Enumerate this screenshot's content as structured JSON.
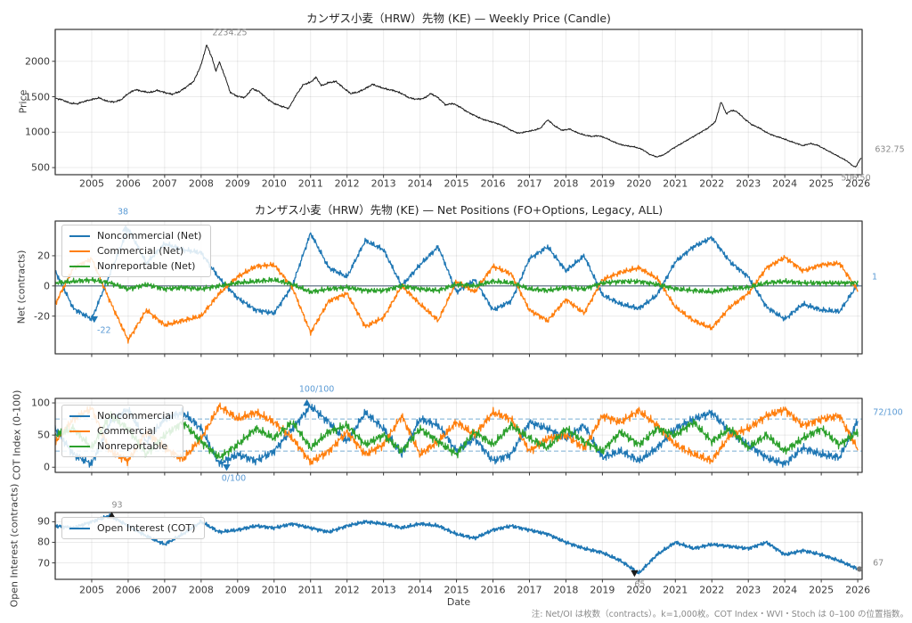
{
  "figure": {
    "footnote": "注: Net/OI は枚数（contracts）。k=1,000枚。COT Index・WVI・Stoch は 0–100 の位置指数。"
  },
  "axes": {
    "xlabel": "Date",
    "xlim": [
      2004.0,
      2026.12
    ],
    "xticks": [
      2005,
      2006,
      2007,
      2008,
      2009,
      2010,
      2011,
      2012,
      2013,
      2014,
      2015,
      2016,
      2017,
      2018,
      2019,
      2020,
      2021,
      2022,
      2023,
      2024,
      2025,
      2026
    ]
  },
  "colors": {
    "noncommercial": "#1f77b4",
    "commercial": "#ff7f0e",
    "nonreportable": "#2ca02c",
    "price": "#1a1a1a",
    "annotation_blue": "#5b9bd5",
    "annotation_gray": "#8a8a8a",
    "guide_dashed": "#1f77b4",
    "zero_line": "#53677d"
  },
  "chart_data": [
    {
      "id": "price",
      "type": "line",
      "title": "カンザス小麦（HRW）先物 (KE) — Weekly Price (Candle)",
      "ylabel": "Price",
      "yticks": [
        500,
        1000,
        1500,
        2000
      ],
      "ylim": [
        400,
        2450
      ],
      "x": [
        2004.0,
        2004.2,
        2004.4,
        2004.6,
        2004.8,
        2005.0,
        2005.2,
        2005.4,
        2005.6,
        2005.8,
        2006.0,
        2006.2,
        2006.4,
        2006.6,
        2006.8,
        2007.0,
        2007.2,
        2007.4,
        2007.6,
        2007.8,
        2008.0,
        2008.15,
        2008.3,
        2008.4,
        2008.5,
        2008.65,
        2008.8,
        2009.0,
        2009.2,
        2009.4,
        2009.6,
        2009.8,
        2010.0,
        2010.2,
        2010.4,
        2010.6,
        2010.8,
        2011.0,
        2011.15,
        2011.3,
        2011.5,
        2011.7,
        2011.9,
        2012.1,
        2012.3,
        2012.5,
        2012.7,
        2012.9,
        2013.1,
        2013.3,
        2013.5,
        2013.7,
        2013.9,
        2014.1,
        2014.3,
        2014.5,
        2014.7,
        2014.9,
        2015.1,
        2015.3,
        2015.5,
        2015.7,
        2015.9,
        2016.1,
        2016.3,
        2016.5,
        2016.7,
        2016.9,
        2017.1,
        2017.3,
        2017.5,
        2017.7,
        2017.9,
        2018.1,
        2018.3,
        2018.5,
        2018.7,
        2018.9,
        2019.1,
        2019.3,
        2019.5,
        2019.7,
        2019.9,
        2020.1,
        2020.3,
        2020.5,
        2020.7,
        2020.9,
        2021.1,
        2021.3,
        2021.5,
        2021.7,
        2021.9,
        2022.1,
        2022.25,
        2022.4,
        2022.55,
        2022.7,
        2022.9,
        2023.1,
        2023.3,
        2023.5,
        2023.7,
        2023.9,
        2024.1,
        2024.3,
        2024.5,
        2024.7,
        2024.9,
        2025.1,
        2025.3,
        2025.5,
        2025.7,
        2025.85,
        2025.95,
        2026.05,
        2026.1
      ],
      "series": [
        {
          "name": "Price",
          "color": "#1a1a1a",
          "values": [
            1480,
            1455,
            1410,
            1400,
            1435,
            1460,
            1485,
            1440,
            1425,
            1455,
            1545,
            1600,
            1575,
            1560,
            1590,
            1560,
            1535,
            1570,
            1640,
            1720,
            1950,
            2234,
            2050,
            1860,
            1990,
            1790,
            1560,
            1505,
            1490,
            1615,
            1570,
            1475,
            1405,
            1365,
            1335,
            1520,
            1670,
            1705,
            1775,
            1655,
            1700,
            1715,
            1625,
            1545,
            1565,
            1615,
            1675,
            1635,
            1605,
            1585,
            1545,
            1485,
            1465,
            1475,
            1545,
            1485,
            1385,
            1405,
            1355,
            1285,
            1235,
            1185,
            1155,
            1125,
            1085,
            1025,
            985,
            1005,
            1025,
            1055,
            1175,
            1085,
            1025,
            1045,
            995,
            960,
            940,
            950,
            915,
            865,
            825,
            805,
            790,
            755,
            685,
            650,
            685,
            760,
            820,
            880,
            940,
            1000,
            1060,
            1150,
            1430,
            1260,
            1310,
            1285,
            1185,
            1105,
            1060,
            995,
            950,
            920,
            880,
            845,
            810,
            840,
            815,
            760,
            705,
            650,
            595,
            530,
            507,
            610,
            633
          ]
        }
      ],
      "annotations": [
        {
          "text": "2234.25",
          "x": 2008.15,
          "y": 2234.25,
          "marker": null
        },
        {
          "text": "632.75",
          "x": 2026.12,
          "y": 632.75,
          "marker": null
        },
        {
          "text": "506.50",
          "x": 2025.95,
          "y": 506.5,
          "marker": null
        }
      ]
    },
    {
      "id": "net",
      "type": "line",
      "title": "カンザス小麦（HRW）先物 (KE) — Net Positions (FO+Options, Legacy, ALL)",
      "ylabel": "Net (contracts)",
      "yticks": [
        -20,
        0,
        20
      ],
      "ylim": [
        -45,
        43
      ],
      "zero_line": 0,
      "x": [
        2004.0,
        2004.5,
        2005.0,
        2005.5,
        2006.0,
        2006.5,
        2007.0,
        2007.5,
        2008.0,
        2008.5,
        2009.0,
        2009.5,
        2010.0,
        2010.5,
        2011.0,
        2011.5,
        2012.0,
        2012.5,
        2013.0,
        2013.5,
        2014.0,
        2014.5,
        2015.0,
        2015.5,
        2016.0,
        2016.5,
        2017.0,
        2017.5,
        2018.0,
        2018.5,
        2019.0,
        2019.5,
        2020.0,
        2020.5,
        2021.0,
        2021.5,
        2022.0,
        2022.5,
        2023.0,
        2023.5,
        2024.0,
        2024.5,
        2025.0,
        2025.5,
        2026.0
      ],
      "series": [
        {
          "name": "Noncommercial (Net)",
          "color": "#1f77b4",
          "values": [
            10,
            -15,
            -22,
            8,
            38,
            15,
            28,
            24,
            22,
            5,
            -8,
            -16,
            -18,
            0,
            35,
            12,
            6,
            30,
            24,
            0,
            14,
            26,
            -4,
            4,
            -16,
            -10,
            18,
            26,
            10,
            20,
            -6,
            -12,
            -15,
            -6,
            16,
            26,
            32,
            16,
            6,
            -14,
            -22,
            -12,
            -16,
            -17,
            1
          ]
        },
        {
          "name": "Commercial (Net)",
          "color": "#ff7f0e",
          "values": [
            -12,
            12,
            18,
            -10,
            -36,
            -16,
            -26,
            -23,
            -20,
            -5,
            6,
            13,
            14,
            -1,
            -31,
            -10,
            -5,
            -27,
            -21,
            0,
            -12,
            -23,
            3,
            -4,
            13,
            8,
            -16,
            -23,
            -9,
            -18,
            4,
            9,
            12,
            5,
            -14,
            -23,
            -28,
            -14,
            -5,
            12,
            19,
            10,
            14,
            15,
            -3
          ]
        },
        {
          "name": "Nonreportable (Net)",
          "color": "#2ca02c",
          "values": [
            2,
            3,
            4,
            2,
            -2,
            1,
            -2,
            -1,
            -2,
            0,
            2,
            3,
            4,
            1,
            -4,
            -2,
            -1,
            -3,
            -3,
            0,
            -2,
            -3,
            1,
            0,
            3,
            2,
            -2,
            -3,
            -1,
            -2,
            2,
            3,
            3,
            1,
            -2,
            -3,
            -4,
            -2,
            -1,
            2,
            3,
            2,
            2,
            2,
            2
          ]
        }
      ],
      "annotations": [
        {
          "text": "38",
          "x": 2005.93,
          "y": 38,
          "marker": "up"
        },
        {
          "text": "-22",
          "x": 2005.07,
          "y": -22,
          "marker": "down"
        },
        {
          "text": "1",
          "x": 2026.12,
          "y": 1,
          "marker": null
        }
      ]
    },
    {
      "id": "cot",
      "type": "line",
      "title": "",
      "ylabel": "COT Index (0-100)",
      "yticks": [
        0,
        50,
        100
      ],
      "ylim": [
        -8,
        107
      ],
      "guides": [
        25,
        75
      ],
      "clamp": [
        0,
        100
      ],
      "x": [
        2004.0,
        2004.5,
        2005.0,
        2005.5,
        2006.0,
        2006.5,
        2007.0,
        2007.5,
        2008.0,
        2008.5,
        2009.0,
        2009.5,
        2010.0,
        2010.5,
        2011.0,
        2011.5,
        2012.0,
        2012.5,
        2013.0,
        2013.5,
        2014.0,
        2014.5,
        2015.0,
        2015.5,
        2016.0,
        2016.5,
        2017.0,
        2017.5,
        2018.0,
        2018.5,
        2019.0,
        2019.5,
        2020.0,
        2020.5,
        2021.0,
        2021.5,
        2022.0,
        2022.5,
        2023.0,
        2023.5,
        2024.0,
        2024.5,
        2025.0,
        2025.5,
        2026.0
      ],
      "series": [
        {
          "name": "Noncommercial",
          "color": "#1f77b4",
          "values": [
            60,
            20,
            5,
            70,
            90,
            40,
            75,
            85,
            60,
            5,
            20,
            10,
            25,
            60,
            95,
            70,
            40,
            85,
            60,
            20,
            75,
            65,
            25,
            45,
            10,
            20,
            70,
            60,
            45,
            65,
            15,
            25,
            10,
            30,
            60,
            75,
            85,
            55,
            35,
            15,
            5,
            30,
            20,
            15,
            72
          ]
        },
        {
          "name": "Commercial",
          "color": "#ff7f0e",
          "values": [
            40,
            75,
            92,
            25,
            10,
            55,
            30,
            12,
            45,
            95,
            75,
            85,
            70,
            45,
            8,
            25,
            55,
            20,
            35,
            80,
            20,
            40,
            70,
            50,
            85,
            75,
            25,
            45,
            50,
            30,
            80,
            70,
            88,
            65,
            35,
            20,
            10,
            50,
            60,
            80,
            90,
            65,
            75,
            80,
            28
          ]
        },
        {
          "name": "Nonreportable",
          "color": "#2ca02c",
          "values": [
            50,
            60,
            30,
            80,
            60,
            20,
            50,
            70,
            40,
            15,
            35,
            60,
            45,
            70,
            30,
            55,
            65,
            35,
            50,
            25,
            60,
            40,
            20,
            55,
            35,
            65,
            45,
            30,
            60,
            40,
            25,
            55,
            35,
            60,
            50,
            70,
            40,
            60,
            30,
            50,
            25,
            45,
            60,
            35,
            55
          ]
        }
      ],
      "annotations": [
        {
          "text": "100/100",
          "x": 2010.9,
          "y": 100,
          "marker": "up"
        },
        {
          "text": "0/100",
          "x": 2008.7,
          "y": 0,
          "marker": "down"
        },
        {
          "text": "72/100",
          "x": 2026.12,
          "y": 72,
          "marker": null
        }
      ]
    },
    {
      "id": "oi",
      "type": "line",
      "title": "",
      "ylabel": "Open Interest (contracts)",
      "yticks": [
        70,
        80,
        90
      ],
      "ylim": [
        62,
        94.5
      ],
      "x": [
        2004.0,
        2004.5,
        2005.0,
        2005.5,
        2006.0,
        2006.5,
        2007.0,
        2007.5,
        2008.0,
        2008.5,
        2009.0,
        2009.5,
        2010.0,
        2010.5,
        2011.0,
        2011.5,
        2012.0,
        2012.5,
        2013.0,
        2013.5,
        2014.0,
        2014.5,
        2015.0,
        2015.5,
        2016.0,
        2016.5,
        2017.0,
        2017.5,
        2018.0,
        2018.5,
        2019.0,
        2019.5,
        2020.0,
        2020.5,
        2021.0,
        2021.5,
        2022.0,
        2022.5,
        2023.0,
        2023.5,
        2024.0,
        2024.5,
        2025.0,
        2025.5,
        2026.0
      ],
      "series": [
        {
          "name": "Open Interest (COT)",
          "color": "#1f77b4",
          "values": [
            88,
            87,
            90,
            93,
            88,
            83,
            79,
            84,
            90,
            85,
            86,
            88,
            87,
            89,
            87,
            85,
            88,
            90,
            89,
            87,
            89,
            88,
            84,
            82,
            86,
            88,
            86,
            84,
            80,
            77,
            75,
            71,
            65,
            74,
            80,
            77,
            79,
            78,
            77,
            80,
            74,
            76,
            74,
            71,
            67
          ]
        }
      ],
      "annotations": [
        {
          "text": "93",
          "x": 2005.55,
          "y": 93,
          "marker": "up"
        },
        {
          "text": "65",
          "x": 2019.88,
          "y": 65,
          "marker": "down"
        },
        {
          "text": "67",
          "x": 2026.05,
          "y": 67,
          "marker": "circle"
        }
      ]
    }
  ]
}
